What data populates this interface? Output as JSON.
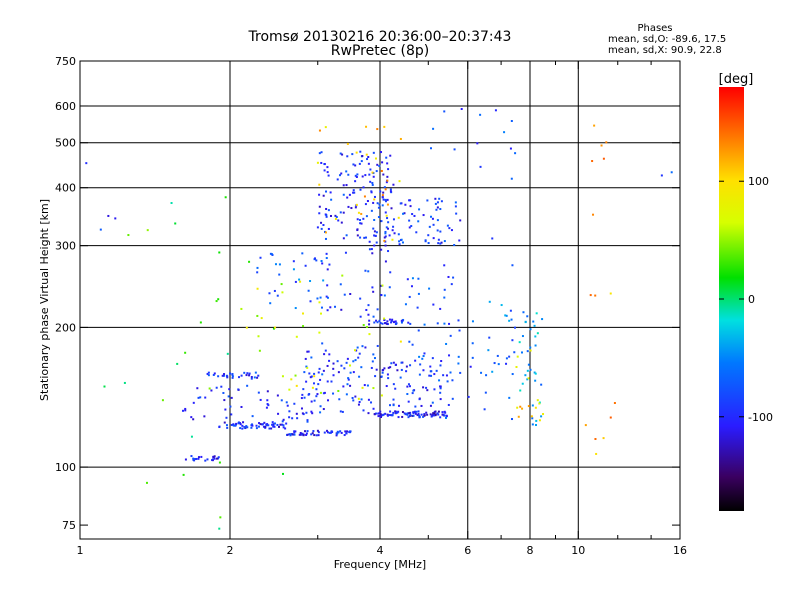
{
  "chart_data": {
    "type": "scatter",
    "title": "Tromsø 20130216 20:36:00–20:37:43",
    "subtitle": "RwPretec (8p)",
    "xlabel": "Frequency [MHz]",
    "ylabel": "Stationary phase Virtual Height [km]",
    "x_scale": "log",
    "y_scale": "log",
    "xlim": [
      1,
      16
    ],
    "ylim": [
      70,
      750
    ],
    "grid": true,
    "x_ticks": [
      1,
      2,
      4,
      6,
      8,
      10,
      16
    ],
    "x_tick_labels": [
      "1",
      "2",
      "4",
      "6",
      "8",
      "10",
      "16"
    ],
    "x_grid": [
      2,
      4,
      6,
      8,
      10
    ],
    "x_minor_ticks": [
      3,
      5,
      7,
      9,
      12,
      14
    ],
    "y_ticks": [
      75,
      100,
      200,
      300,
      400,
      500,
      600,
      750
    ],
    "y_tick_labels": [
      "75",
      "100",
      "200",
      "300",
      "400",
      "500",
      "600",
      "750"
    ],
    "y_grid": [
      100,
      200,
      300,
      400,
      500,
      600
    ],
    "stats": {
      "heading": "Phases",
      "line_o": "mean, sd,O: -89.6, 17.5",
      "line_x": "mean, sd,X:  90.9, 22.8"
    },
    "colorbar": {
      "label": "[deg]",
      "range": [
        -180,
        180
      ],
      "ticks": [
        100,
        0,
        -100
      ],
      "tick_labels": [
        "100",
        "0",
        "-100"
      ]
    },
    "clusters": [
      {
        "x": [
          1.63,
          1.9
        ],
        "y": [
          103,
          106
        ],
        "n": 22,
        "phase": -100
      },
      {
        "x": [
          1.9,
          2.6
        ],
        "y": [
          121,
          125
        ],
        "n": 60,
        "phase": -100
      },
      {
        "x": [
          2.6,
          3.5
        ],
        "y": [
          117,
          120
        ],
        "n": 55,
        "phase": -100
      },
      {
        "x": [
          1.8,
          2.3
        ],
        "y": [
          155,
          160
        ],
        "n": 30,
        "phase": -90
      },
      {
        "x": [
          1.6,
          3.0
        ],
        "y": [
          125,
          150
        ],
        "n": 60,
        "phase": -100
      },
      {
        "x": [
          2.8,
          4.0
        ],
        "y": [
          130,
          185
        ],
        "n": 90,
        "phase": -90
      },
      {
        "x": [
          3.9,
          5.5
        ],
        "y": [
          128,
          132
        ],
        "n": 90,
        "phase": -105
      },
      {
        "x": [
          4.0,
          5.6
        ],
        "y": [
          135,
          170
        ],
        "n": 70,
        "phase": -95
      },
      {
        "x": [
          3.8,
          4.6
        ],
        "y": [
          203,
          208
        ],
        "n": 30,
        "phase": -100
      },
      {
        "x": [
          3.0,
          4.2
        ],
        "y": [
          210,
          300
        ],
        "n": 40,
        "phase": -90
      },
      {
        "x": [
          3.0,
          4.3
        ],
        "y": [
          310,
          480
        ],
        "n": 140,
        "phase": -95
      },
      {
        "x": [
          3.8,
          5.8
        ],
        "y": [
          300,
          380
        ],
        "n": 80,
        "phase": -90
      },
      {
        "x": [
          4.5,
          5.8
        ],
        "y": [
          150,
          260
        ],
        "n": 40,
        "phase": -80
      },
      {
        "x": [
          2.2,
          3.1
        ],
        "y": [
          220,
          290
        ],
        "n": 30,
        "phase": -70
      },
      {
        "x": [
          6.0,
          7.5
        ],
        "y": [
          130,
          230
        ],
        "n": 25,
        "phase": -60
      },
      {
        "x": [
          7.6,
          8.5
        ],
        "y": [
          122,
          220
        ],
        "n": 35,
        "phase": -40
      },
      {
        "x": [
          4.8,
          7.5
        ],
        "y": [
          105,
          620
        ],
        "n": 25,
        "phase": -80
      },
      {
        "x": [
          1.1,
          2.6
        ],
        "y": [
          72,
          400
        ],
        "n": 25,
        "phase": 20
      },
      {
        "x": [
          2.0,
          4.5
        ],
        "y": [
          140,
          260
        ],
        "n": 40,
        "phase": 70
      },
      {
        "x": [
          3.0,
          4.5
        ],
        "y": [
          300,
          560
        ],
        "n": 30,
        "phase": 110
      },
      {
        "x": [
          7.5,
          8.5
        ],
        "y": [
          120,
          180
        ],
        "n": 15,
        "phase": 100
      },
      {
        "x": [
          10.3,
          12.0
        ],
        "y": [
          90,
          600
        ],
        "n": 15,
        "phase": 120
      },
      {
        "x": [
          1.0,
          1.2
        ],
        "y": [
          300,
          460
        ],
        "n": 4,
        "phase": -90
      },
      {
        "x": [
          14.5,
          16.0
        ],
        "y": [
          420,
          440
        ],
        "n": 2,
        "phase": -80
      }
    ]
  }
}
